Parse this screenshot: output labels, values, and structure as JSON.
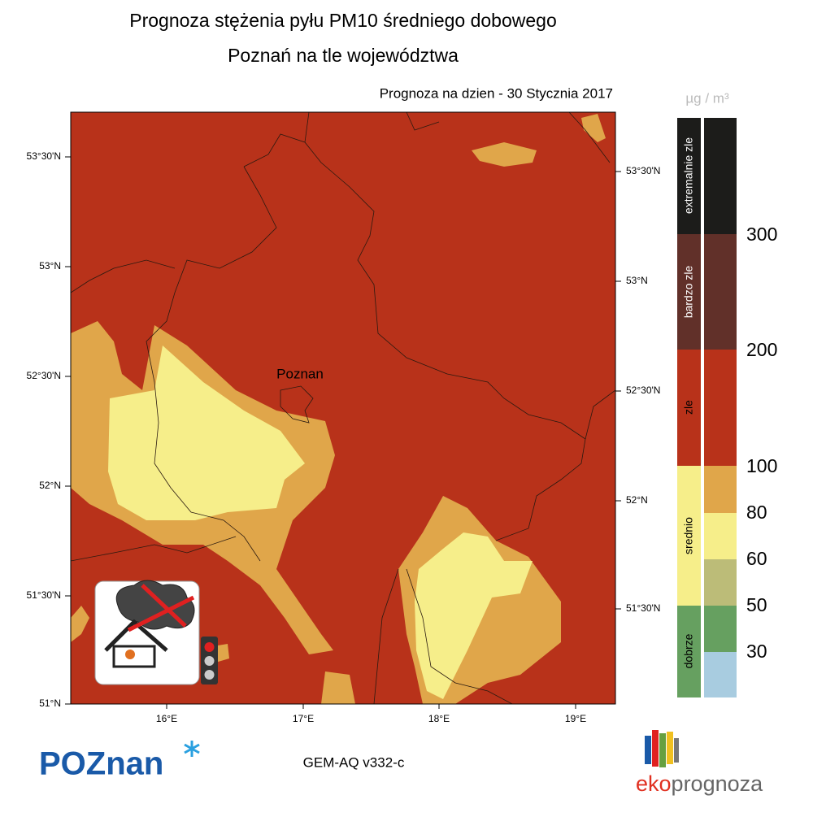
{
  "header": {
    "title": "Prognoza stężenia pyłu PM10 średniego dobowego",
    "subtitle": "Poznań na tle województwa",
    "date": "Prognoza na dzien -  30 Stycznia 2017"
  },
  "map": {
    "city": "Poznan",
    "lat_labels": [
      "53°30'N",
      "53°N",
      "52°30'N",
      "52°N",
      "51°30'N",
      "51°N"
    ],
    "lon_labels": [
      "16°E",
      "17°E",
      "18°E",
      "19°E"
    ]
  },
  "legend": {
    "unit": "µg / m³",
    "categories": [
      "extremalnie zle",
      "bardzo zle",
      "zle",
      "srednio",
      "dobrze"
    ],
    "thresholds": [
      300,
      200,
      100,
      80,
      60,
      50,
      30
    ]
  },
  "footer": {
    "logo": "POZnan",
    "model": "GEM-AQ v332-c",
    "brand_eko": "eko",
    "brand_prognoza": "prognoza"
  }
}
